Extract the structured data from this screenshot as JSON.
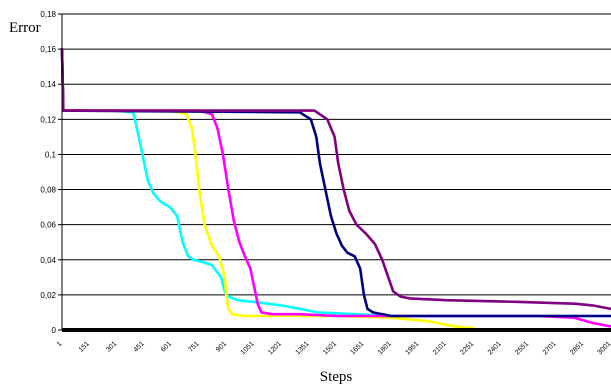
{
  "chart_data": {
    "type": "line",
    "title": "",
    "xlabel": "Steps",
    "ylabel": "Error",
    "xlim": [
      1,
      3000
    ],
    "ylim": [
      0,
      0.18
    ],
    "grid": true,
    "legend": "none",
    "y_ticks": [
      0,
      0.02,
      0.04,
      0.06,
      0.08,
      0.1,
      0.12,
      0.14,
      0.16,
      0.18
    ],
    "y_tick_labels": [
      "0",
      "0,02",
      "0,04",
      "0,06",
      "0,08",
      "0,1",
      "0,12",
      "0,14",
      "0,16",
      "0,18"
    ],
    "x_ticks": [
      1,
      151,
      301,
      451,
      601,
      751,
      901,
      1051,
      1201,
      1351,
      1501,
      1651,
      1801,
      1951,
      2101,
      2251,
      2401,
      2551,
      2701,
      2851,
      3001
    ],
    "x_tick_labels": [
      "1",
      "151",
      "301",
      "451",
      "601",
      "751",
      "901",
      "1051",
      "1201",
      "1351",
      "1501",
      "1651",
      "1801",
      "1951",
      "2101",
      "2251",
      "2401",
      "2551",
      "2701",
      "2851",
      "3001"
    ],
    "series": [
      {
        "color": "#00FFFF",
        "x": [
          1,
          8,
          60,
          300,
          390,
          410,
          440,
          470,
          500,
          540,
          590,
          630,
          660,
          690,
          720,
          760,
          820,
          870,
          890,
          910,
          960,
          1050,
          1200,
          1400,
          1600,
          1800,
          2100,
          2500,
          3000
        ],
        "y": [
          0.16,
          0.125,
          0.125,
          0.125,
          0.124,
          0.115,
          0.1,
          0.085,
          0.078,
          0.073,
          0.07,
          0.065,
          0.05,
          0.042,
          0.04,
          0.039,
          0.037,
          0.03,
          0.022,
          0.019,
          0.017,
          0.016,
          0.014,
          0.01,
          0.009,
          0.008,
          0.008,
          0.008,
          0.008
        ]
      },
      {
        "color": "#FFFF00",
        "x": [
          1,
          8,
          600,
          680,
          710,
          730,
          750,
          780,
          820,
          860,
          890,
          900,
          910,
          930,
          1000,
          1200,
          1500,
          1800,
          2000,
          2150,
          2250
        ],
        "y": [
          0.16,
          0.125,
          0.125,
          0.123,
          0.115,
          0.1,
          0.08,
          0.06,
          0.048,
          0.042,
          0.03,
          0.018,
          0.012,
          0.009,
          0.008,
          0.008,
          0.008,
          0.007,
          0.005,
          0.002,
          0.001
        ]
      },
      {
        "color": "#FF00FF",
        "x": [
          1,
          8,
          750,
          820,
          850,
          880,
          910,
          940,
          970,
          1000,
          1030,
          1050,
          1070,
          1090,
          1150,
          1300,
          1500,
          1800,
          2200,
          2600,
          2800,
          2900,
          3000
        ],
        "y": [
          0.16,
          0.125,
          0.125,
          0.123,
          0.115,
          0.1,
          0.08,
          0.062,
          0.05,
          0.042,
          0.035,
          0.025,
          0.015,
          0.01,
          0.009,
          0.009,
          0.008,
          0.008,
          0.008,
          0.008,
          0.007,
          0.004,
          0.002
        ]
      },
      {
        "color": "#000080",
        "x": [
          1,
          8,
          1300,
          1360,
          1390,
          1410,
          1440,
          1470,
          1500,
          1530,
          1560,
          1600,
          1630,
          1650,
          1670,
          1700,
          1800,
          2200,
          2600,
          3000
        ],
        "y": [
          0.16,
          0.125,
          0.124,
          0.12,
          0.11,
          0.095,
          0.08,
          0.065,
          0.055,
          0.048,
          0.044,
          0.042,
          0.035,
          0.02,
          0.012,
          0.01,
          0.008,
          0.008,
          0.008,
          0.008
        ]
      },
      {
        "color": "#800080",
        "x": [
          1,
          8,
          1380,
          1450,
          1490,
          1510,
          1540,
          1570,
          1610,
          1660,
          1710,
          1750,
          1790,
          1810,
          1850,
          1900,
          2100,
          2500,
          2800,
          2900,
          3000
        ],
        "y": [
          0.16,
          0.125,
          0.125,
          0.12,
          0.11,
          0.095,
          0.08,
          0.068,
          0.06,
          0.055,
          0.049,
          0.04,
          0.028,
          0.022,
          0.019,
          0.018,
          0.017,
          0.016,
          0.015,
          0.014,
          0.012
        ]
      }
    ]
  }
}
